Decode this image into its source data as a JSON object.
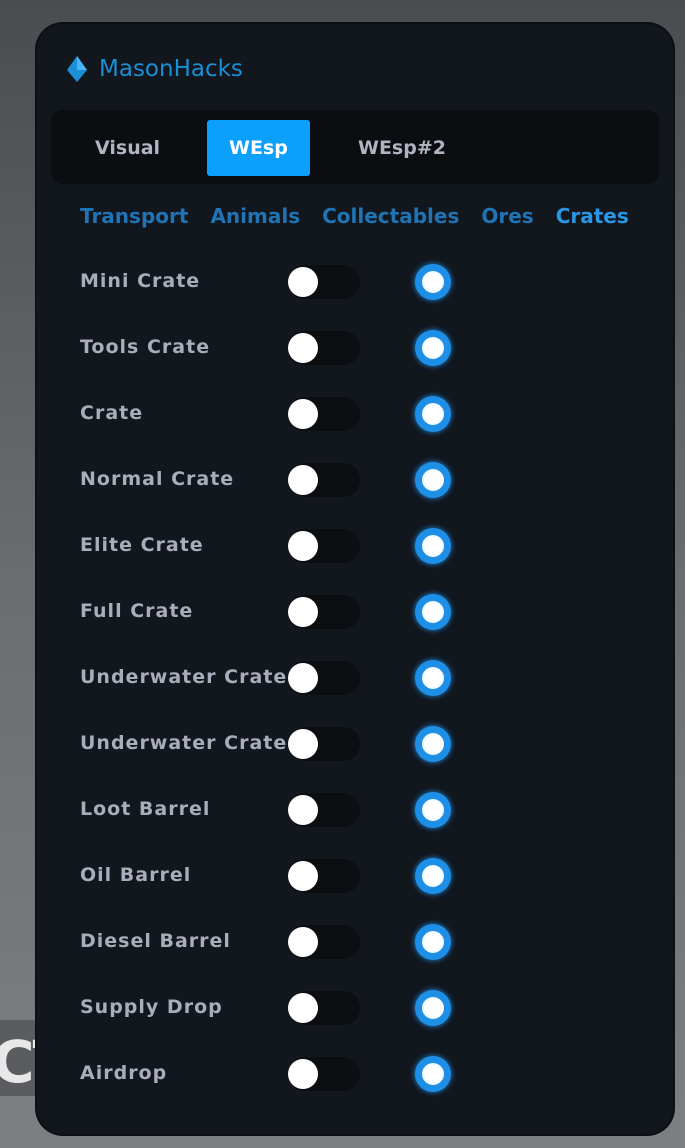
{
  "background_text": "CT",
  "app": {
    "title": "MasonHacks",
    "accent": "#0aa0fb"
  },
  "tabs": [
    {
      "label": "Visual",
      "active": false
    },
    {
      "label": "WEsp",
      "active": true
    },
    {
      "label": "WEsp#2",
      "active": false
    }
  ],
  "subtabs": [
    {
      "label": "Transport",
      "active": false
    },
    {
      "label": "Animals",
      "active": false
    },
    {
      "label": "Collectables",
      "active": false
    },
    {
      "label": "Ores",
      "active": false
    },
    {
      "label": "Crates",
      "active": true
    }
  ],
  "items": [
    {
      "label": "Mini Crate",
      "toggle": false,
      "radio": true
    },
    {
      "label": "Tools Crate",
      "toggle": false,
      "radio": true
    },
    {
      "label": "Crate",
      "toggle": false,
      "radio": true
    },
    {
      "label": "Normal Crate",
      "toggle": false,
      "radio": true
    },
    {
      "label": "Elite Crate",
      "toggle": false,
      "radio": true
    },
    {
      "label": "Full Crate",
      "toggle": false,
      "radio": true
    },
    {
      "label": "Underwater Crate",
      "toggle": false,
      "radio": true
    },
    {
      "label": "Underwater Crate",
      "toggle": false,
      "radio": true
    },
    {
      "label": "Loot Barrel",
      "toggle": false,
      "radio": true
    },
    {
      "label": "Oil Barrel",
      "toggle": false,
      "radio": true
    },
    {
      "label": "Diesel Barrel",
      "toggle": false,
      "radio": true
    },
    {
      "label": "Supply Drop",
      "toggle": false,
      "radio": true
    },
    {
      "label": "Airdrop",
      "toggle": false,
      "radio": true
    }
  ]
}
